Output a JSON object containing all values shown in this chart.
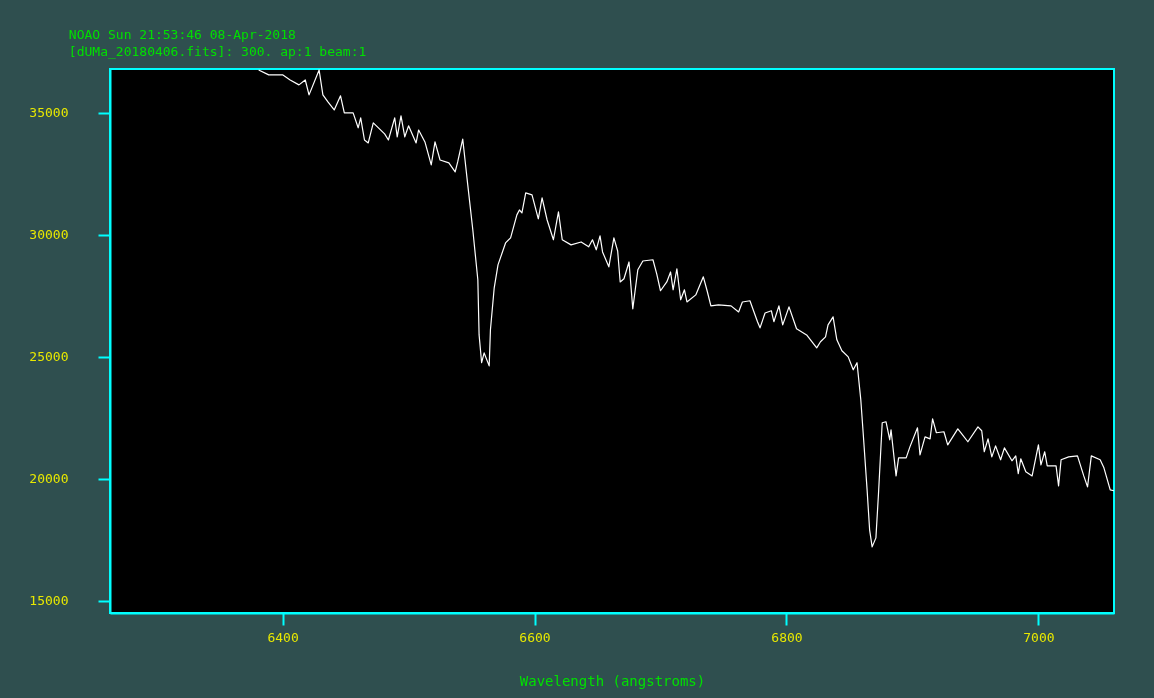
{
  "chart_data": {
    "type": "line",
    "title": "NOAO Sun 21:53:46 08-Apr-2018",
    "subtitle": "[dUMa_20180406.fits]:  300. ap:1 beam:1",
    "xlabel": "Wavelength (angstroms)",
    "xlim": [
      6263,
      7060
    ],
    "ylim": [
      14500,
      36800
    ],
    "xticks": [
      6400,
      6600,
      6800,
      7000
    ],
    "yticks": [
      15000,
      20000,
      25000,
      30000,
      35000
    ],
    "grid": false,
    "legend": false,
    "marker": "none",
    "line_style": "solid",
    "x": [
      6381,
      6389,
      6400,
      6406,
      6413,
      6418,
      6421,
      6429,
      6432,
      6436,
      6441,
      6446,
      6449,
      6456,
      6460,
      6462,
      6465,
      6468,
      6472,
      6481,
      6484,
      6489,
      6491,
      6494,
      6497,
      6500,
      6506,
      6508,
      6513,
      6518,
      6521,
      6525,
      6532,
      6537,
      6539,
      6543,
      6547,
      6551,
      6555,
      6556,
      6558,
      6560,
      6564,
      6565,
      6568,
      6571,
      6577,
      6581,
      6586,
      6588,
      6590,
      6593,
      6598,
      6603,
      6606,
      6610,
      6615,
      6619,
      6622,
      6629,
      6637,
      6643,
      6646,
      6649,
      6652,
      6654,
      6659,
      6663,
      6666,
      6668,
      6671,
      6675,
      6678,
      6682,
      6686,
      6694,
      6697,
      6700,
      6705,
      6708,
      6710,
      6713,
      6716,
      6719,
      6721,
      6728,
      6734,
      6737,
      6740,
      6746,
      6756,
      6762,
      6765,
      6771,
      6777,
      6779,
      6783,
      6788,
      6790,
      6794,
      6797,
      6802,
      6808,
      6816,
      6824,
      6827,
      6831,
      6833,
      6837,
      6840,
      6844,
      6849,
      6853,
      6856,
      6859,
      6861,
      6864,
      6866,
      6868,
      6871,
      6873,
      6876,
      6879,
      6882,
      6883,
      6887,
      6889,
      6895,
      6898,
      6904,
      6906,
      6910,
      6914,
      6916,
      6919,
      6925,
      6928,
      6936,
      6939,
      6944,
      6952,
      6955,
      6957,
      6960,
      6963,
      6966,
      6970,
      6973,
      6979,
      6982,
      6984,
      6986,
      6990,
      6995,
      7000,
      7002,
      7005,
      7007,
      7014,
      7016,
      7018,
      7024,
      7031,
      7036,
      7039,
      7042,
      7049,
      7052,
      7057,
      7060
    ],
    "series": [
      {
        "color": "#ffffff",
        "values": [
          36760,
          36560,
          36560,
          36350,
          36150,
          36350,
          35740,
          36760,
          35740,
          35450,
          35120,
          35700,
          35000,
          35000,
          34390,
          34800,
          33890,
          33770,
          34590,
          34140,
          33890,
          34800,
          34020,
          34880,
          34020,
          34470,
          33770,
          34300,
          33810,
          32870,
          33810,
          33070,
          32950,
          32580,
          32990,
          33930,
          32050,
          30210,
          28160,
          25900,
          24760,
          25160,
          24630,
          26110,
          27830,
          28770,
          29670,
          29880,
          30820,
          31020,
          30900,
          31720,
          31640,
          30660,
          31520,
          30610,
          29800,
          30940,
          29800,
          29590,
          29710,
          29510,
          29800,
          29390,
          29960,
          29300,
          28690,
          29880,
          29340,
          28070,
          28200,
          28890,
          26970,
          28570,
          28930,
          28980,
          28400,
          27710,
          28070,
          28480,
          27750,
          28610,
          27340,
          27750,
          27250,
          27540,
          28280,
          27710,
          27090,
          27130,
          27090,
          26840,
          27250,
          27300,
          26440,
          26190,
          26800,
          26890,
          26440,
          27090,
          26310,
          27050,
          26150,
          25900,
          25370,
          25620,
          25820,
          26310,
          26640,
          25700,
          25250,
          25000,
          24470,
          24760,
          23240,
          21800,
          19550,
          17910,
          17210,
          17580,
          19350,
          22300,
          22340,
          21600,
          22010,
          20120,
          20860,
          20860,
          21310,
          22090,
          20980,
          21720,
          21640,
          22460,
          21890,
          21930,
          21390,
          22050,
          21850,
          21520,
          22130,
          21970,
          21110,
          21640,
          20900,
          21350,
          20780,
          21270,
          20740,
          20940,
          20210,
          20820,
          20290,
          20120,
          21390,
          20570,
          21110,
          20530,
          20530,
          19710,
          20780,
          20900,
          20940,
          20120,
          19670,
          20940,
          20780,
          20450,
          19550,
          19510
        ]
      }
    ]
  }
}
